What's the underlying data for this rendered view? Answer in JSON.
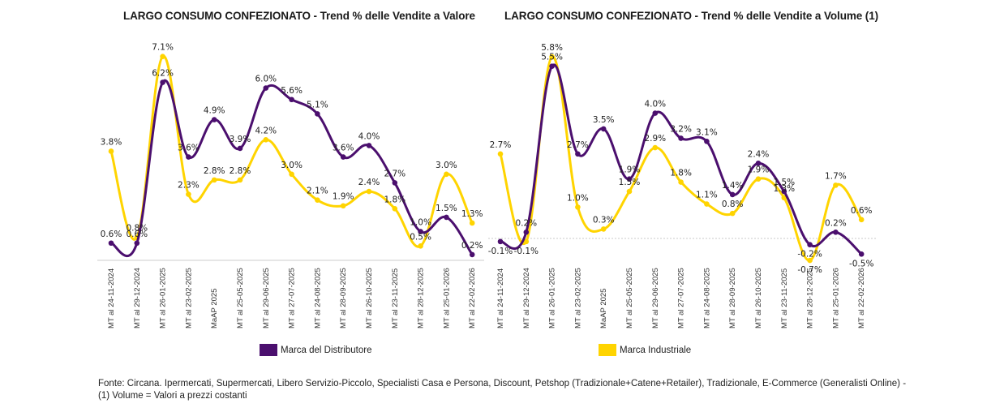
{
  "colors": {
    "mdd": "#4B0F6E",
    "mi": "#FFD400",
    "axis": "#dddddd"
  },
  "legend": [
    {
      "name": "Marca del Distributore",
      "color": "#4B0F6E"
    },
    {
      "name": "Marca Industriale",
      "color": "#FFD400"
    }
  ],
  "footnote": {
    "line1": "Fonte: Circana. Ipermercati, Supermercati, Libero Servizio-Piccolo, Specialisti Casa e Persona, Discount, Petshop (Tradizionale+Catene+Retailer), Tradizionale, E-Commerce (Generalisti Online) -",
    "line2": "(1) Volume = Valori a prezzi costanti"
  },
  "chart_data": [
    {
      "type": "line",
      "title": "LARGO CONSUMO CONFEZIONATO - Trend % delle Vendite a Valore",
      "xlabel": "",
      "ylabel": "",
      "unit": "%",
      "grid": false,
      "ylim": [
        0,
        7.5
      ],
      "categories": [
        "MT al 24-11-2024",
        "MT al 29-12-2024",
        "MT al 26-01-2025",
        "MT al 23-02-2025",
        "MaAP 2025",
        "MT al 25-05-2025",
        "MT al 29-06-2025",
        "MT al 27-07-2025",
        "MT al 24-08-2025",
        "MT al 28-09-2025",
        "MT al 26-10-2025",
        "MT al 23-11-2025",
        "MT al 28-12-2025",
        "MT al 25-01-2026",
        "MT al 22-02-2026"
      ],
      "series": [
        {
          "name": "Marca del Distributore",
          "color": "#4B0F6E",
          "values": [
            0.6,
            0.6,
            6.2,
            3.6,
            4.9,
            3.9,
            6.0,
            5.6,
            5.1,
            3.6,
            4.0,
            2.7,
            1.0,
            1.5,
            0.2
          ]
        },
        {
          "name": "Marca Industriale",
          "color": "#FFD400",
          "values": [
            3.8,
            0.8,
            7.1,
            2.3,
            2.8,
            2.8,
            4.2,
            3.0,
            2.1,
            1.9,
            2.4,
            1.8,
            0.5,
            3.0,
            1.3
          ]
        }
      ],
      "legend": "bottom"
    },
    {
      "type": "line",
      "title": "LARGO CONSUMO CONFEZIONATO - Trend % delle Vendite a Volume (1)",
      "xlabel": "",
      "ylabel": "",
      "unit": "%",
      "grid": false,
      "ylim": [
        -0.7,
        6.0
      ],
      "categories": [
        "MT al 24-11-2024",
        "MT al 29-12-2024",
        "MT al 26-01-2025",
        "MT al 23-02-2025",
        "MaAP 2025",
        "MT al 25-05-2025",
        "MT al 29-06-2025",
        "MT al 27-07-2025",
        "MT al 24-08-2025",
        "MT al 28-09-2025",
        "MT al 26-10-2025",
        "MT al 23-11-2025",
        "MT al 28-12-2025",
        "MT al 25-01-2026",
        "MT al 22-02-2026"
      ],
      "series": [
        {
          "name": "Marca del Distributore",
          "color": "#4B0F6E",
          "values": [
            -0.1,
            0.2,
            5.5,
            2.7,
            3.5,
            1.9,
            4.0,
            3.2,
            3.1,
            1.4,
            2.4,
            1.5,
            -0.2,
            0.2,
            -0.5
          ]
        },
        {
          "name": "Marca Industriale",
          "color": "#FFD400",
          "values": [
            2.7,
            -0.1,
            5.8,
            1.0,
            0.3,
            1.5,
            2.9,
            1.8,
            1.1,
            0.8,
            1.9,
            1.3,
            -0.7,
            1.7,
            0.6
          ]
        }
      ],
      "legend": "bottom"
    }
  ]
}
